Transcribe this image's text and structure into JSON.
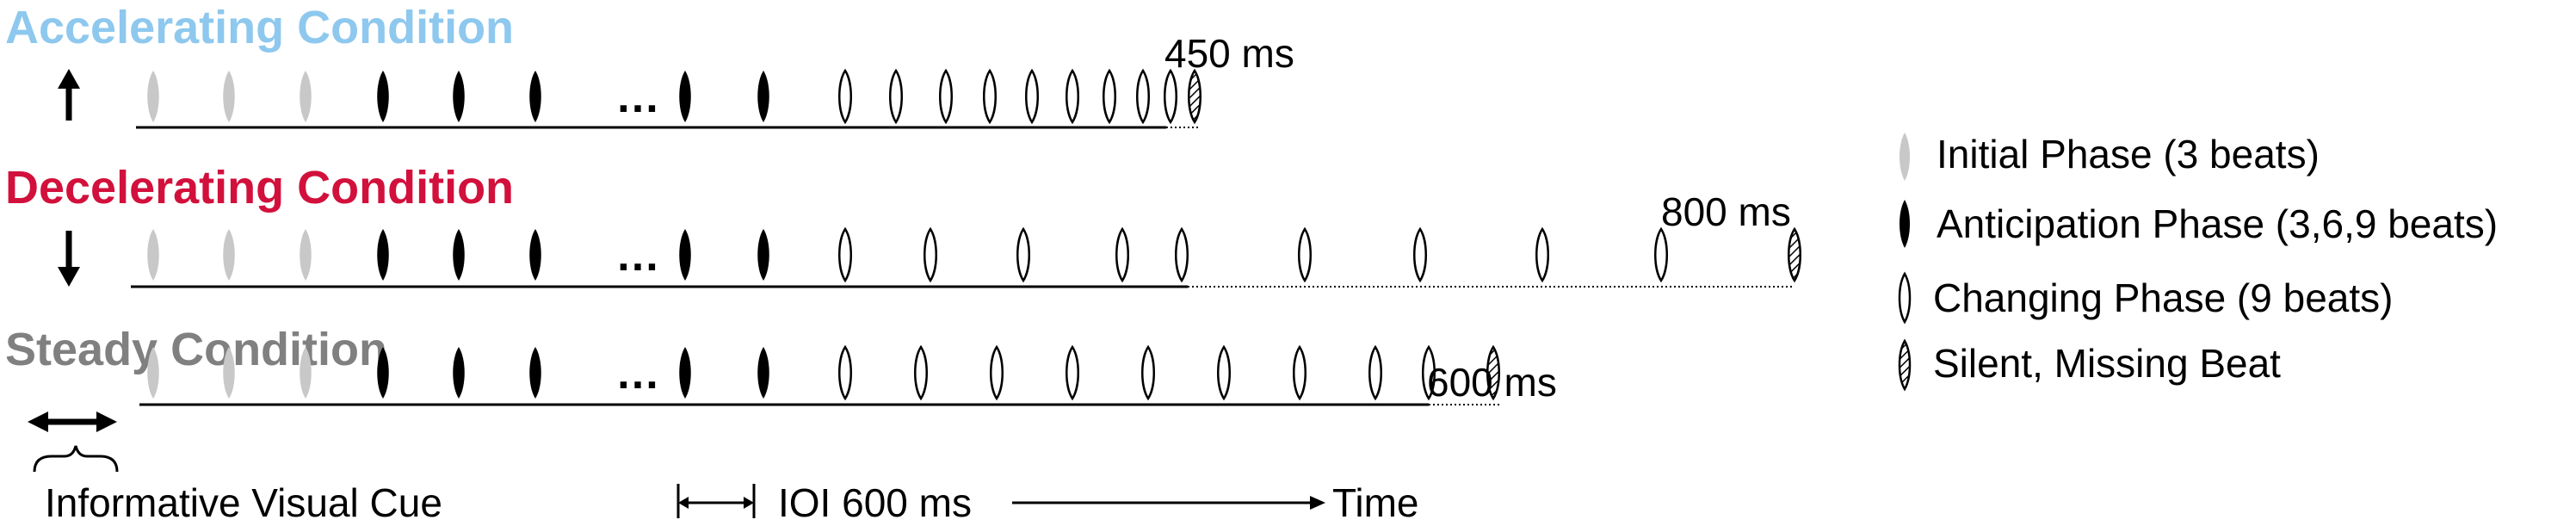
{
  "conditions": [
    {
      "id": "accelerating",
      "title": "Accelerating Condition",
      "color": "#8ec8ee",
      "arrow_icon": "arrow-up-icon",
      "end_label": "450 ms"
    },
    {
      "id": "decelerating",
      "title": "Decelerating Condition",
      "color": "#d2103c",
      "arrow_icon": "arrow-down-icon",
      "end_label": "800 ms"
    },
    {
      "id": "steady",
      "title": "Steady Condition",
      "color": "#808080",
      "arrow_icon": "double-arrow-icon",
      "end_label": "600 ms"
    }
  ],
  "ellipsis": "…",
  "cue_label": "Informative Visual Cue",
  "ioi_label": "IOI 600 ms",
  "time_label": "Time",
  "legend": [
    {
      "id": "initial",
      "label": "Initial Phase (3 beats)",
      "marker": "light-gray-beat-icon",
      "color": "#c8c8c8"
    },
    {
      "id": "anticipation",
      "label": "Anticipation Phase (3,6,9 beats)",
      "marker": "black-beat-icon",
      "color": "#000000"
    },
    {
      "id": "changing",
      "label": "Changing Phase (9 beats)",
      "marker": "white-beat-icon",
      "color": "#ffffff"
    },
    {
      "id": "silent",
      "label": "Silent, Missing Beat",
      "marker": "hatched-beat-icon",
      "color": "#ffffff"
    }
  ]
}
